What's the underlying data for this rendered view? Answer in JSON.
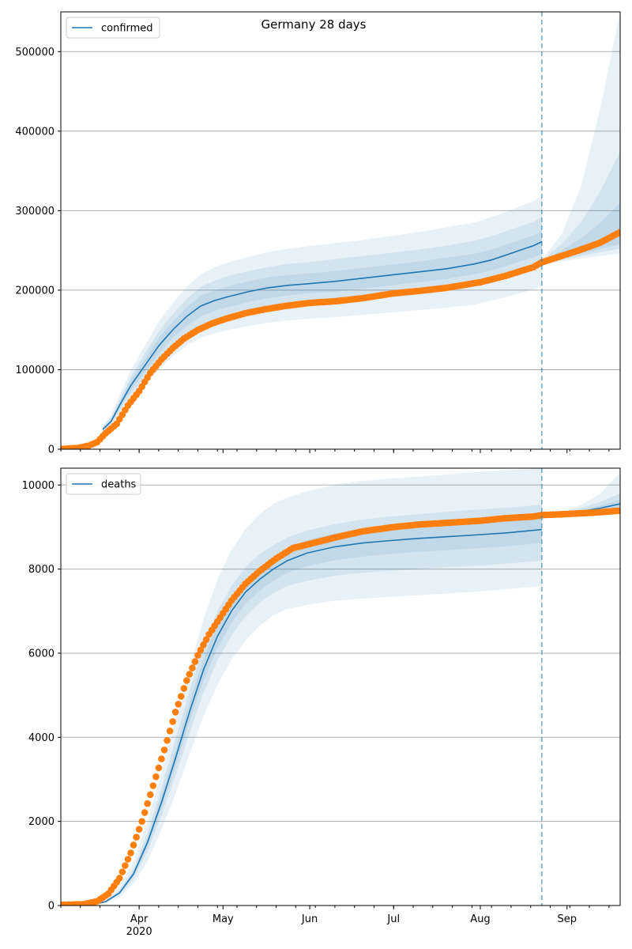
{
  "figure": {
    "title": "Germany 28 days",
    "colors": {
      "model_line": "#1f77b4",
      "band": "#1f77b4",
      "observed": "#ff7f0e",
      "grid": "#b0b0b0",
      "forecast_marker": "#1f77b4"
    }
  },
  "chart_data": [
    {
      "type": "line",
      "legend": "confirmed",
      "legend_position": "top-left",
      "grid": "y",
      "ylim": [
        0,
        550000
      ],
      "yticks": [
        0,
        100000,
        200000,
        300000,
        400000,
        500000
      ],
      "ytick_labels": [
        "0",
        "100000",
        "200000",
        "300000",
        "400000",
        "500000"
      ],
      "x_range": [
        "2020-03-04",
        "2020-09-20"
      ],
      "xtick_dates": [
        "2020-04-01",
        "2020-05-01",
        "2020-06-01",
        "2020-07-01",
        "2020-08-01",
        "2020-09-01"
      ],
      "xtick_labels": [
        "Apr",
        "May",
        "Jun",
        "Jul",
        "Aug",
        "Sep"
      ],
      "xtick_year_label": "2020",
      "forecast_start": "2020-08-23",
      "model": {
        "name": "confirmed",
        "dates": [
          "2020-03-19",
          "2020-03-22",
          "2020-03-25",
          "2020-03-29",
          "2020-04-03",
          "2020-04-08",
          "2020-04-13",
          "2020-04-18",
          "2020-04-23",
          "2020-04-28",
          "2020-05-03",
          "2020-05-10",
          "2020-05-17",
          "2020-05-24",
          "2020-05-31",
          "2020-06-10",
          "2020-06-20",
          "2020-06-30",
          "2020-07-10",
          "2020-07-20",
          "2020-07-30",
          "2020-08-05",
          "2020-08-10",
          "2020-08-15",
          "2020-08-20",
          "2020-08-23"
        ],
        "values": [
          25000,
          35000,
          55000,
          80000,
          105000,
          130000,
          150000,
          167000,
          180000,
          187000,
          192000,
          198000,
          203000,
          206000,
          208000,
          211000,
          215000,
          219000,
          223000,
          227000,
          233000,
          238000,
          244000,
          250000,
          256000,
          261000
        ],
        "bands": [
          {
            "lower": [
              21000,
              29000,
              44000,
              63000,
              82000,
              100000,
              117000,
              130000,
              140000,
              146000,
              150000,
              155000,
              159000,
              162000,
              164000,
              166000,
              169000,
              172000,
              175000,
              178000,
              182000,
              187000,
              191000,
              196000,
              201000,
              205000
            ],
            "upper": [
              29000,
              43000,
              68000,
              99000,
              130000,
              160000,
              184000,
              204000,
              220000,
              229000,
              235000,
              242000,
              248000,
              252000,
              255000,
              259000,
              263000,
              268000,
              273000,
              279000,
              285000,
              292000,
              298000,
              305000,
              312000,
              318000
            ]
          },
          {
            "lower": [
              22000,
              31000,
              48000,
              69000,
              90000,
              111000,
              130000,
              144000,
              156000,
              163000,
              168000,
              173000,
              178000,
              181000,
              184000,
              186000,
              190000,
              194000,
              198000,
              202000,
              208000,
              213000,
              218000,
              223000,
              228000,
              233000
            ],
            "upper": [
              28000,
              40000,
              62000,
              91000,
              120000,
              148000,
              170000,
              189000,
              204000,
              212000,
              218000,
              224000,
              229000,
              233000,
              235000,
              239000,
              243000,
              247000,
              251000,
              256000,
              262000,
              268000,
              274000,
              280000,
              286000,
              292000
            ]
          },
          {
            "lower": [
              23500,
              33000,
              51000,
              74000,
              97000,
              120000,
              140000,
              155000,
              167000,
              174000,
              179000,
              185000,
              190000,
              193000,
              196000,
              198000,
              202000,
              206000,
              210000,
              214000,
              220000,
              225000,
              230000,
              236000,
              241000,
              246000
            ],
            "upper": [
              26500,
              37000,
              59000,
              86000,
              113000,
              140000,
              160000,
              179000,
              193000,
              200000,
              205000,
              211000,
              216000,
              219000,
              221000,
              224000,
              228000,
              232000,
              236000,
              241000,
              246000,
              251000,
              257000,
              263000,
              269000,
              274000
            ]
          }
        ]
      },
      "forecast": {
        "dates": [
          "2020-08-23",
          "2020-08-30",
          "2020-09-06",
          "2020-09-13",
          "2020-09-20"
        ],
        "values": [
          235000,
          243000,
          252000,
          262000,
          273000
        ],
        "bands": [
          {
            "lower": [
              232000,
              236000,
              240000,
              243000,
              246000
            ],
            "upper": [
              238000,
              270000,
              330000,
              430000,
              550000
            ]
          },
          {
            "lower": [
              233000,
              238000,
              243000,
              248000,
              252000
            ],
            "upper": [
              237000,
              258000,
              285000,
              325000,
              375000
            ]
          },
          {
            "lower": [
              234000,
              240000,
              246000,
              252000,
              258000
            ],
            "upper": [
              236000,
              250000,
              265000,
              285000,
              310000
            ]
          }
        ]
      },
      "observed": {
        "name": "observed confirmed",
        "anchor_dates": [
          "2020-03-04",
          "2020-03-10",
          "2020-03-14",
          "2020-03-17",
          "2020-03-20",
          "2020-03-24",
          "2020-03-28",
          "2020-04-01",
          "2020-04-05",
          "2020-04-09",
          "2020-04-13",
          "2020-04-17",
          "2020-04-22",
          "2020-04-27",
          "2020-05-02",
          "2020-05-09",
          "2020-05-16",
          "2020-05-23",
          "2020-06-01",
          "2020-06-10",
          "2020-06-20",
          "2020-07-01",
          "2020-07-10",
          "2020-07-20",
          "2020-08-01",
          "2020-08-10",
          "2020-08-20",
          "2020-08-23",
          "2020-08-30",
          "2020-09-06",
          "2020-09-13",
          "2020-09-20"
        ],
        "anchor_values": [
          300,
          1500,
          4500,
          9000,
          20000,
          32000,
          55000,
          73000,
          96000,
          113000,
          127000,
          139000,
          150000,
          158000,
          164000,
          171000,
          176000,
          180000,
          184000,
          186000,
          190000,
          196000,
          199000,
          203000,
          210000,
          218000,
          229000,
          235000,
          243000,
          251000,
          260000,
          273000
        ]
      }
    },
    {
      "type": "line",
      "legend": "deaths",
      "legend_position": "top-left",
      "grid": "y",
      "ylim": [
        0,
        10400
      ],
      "yticks": [
        0,
        2000,
        4000,
        6000,
        8000,
        10000
      ],
      "ytick_labels": [
        "0",
        "2000",
        "4000",
        "6000",
        "8000",
        "10000"
      ],
      "x_range": [
        "2020-03-04",
        "2020-09-20"
      ],
      "xtick_dates": [
        "2020-04-01",
        "2020-05-01",
        "2020-06-01",
        "2020-07-01",
        "2020-08-01",
        "2020-09-01"
      ],
      "xtick_labels": [
        "Apr",
        "May",
        "Jun",
        "Jul",
        "Aug",
        "Sep"
      ],
      "xtick_year_label": "2020",
      "forecast_start": "2020-08-23",
      "model": {
        "name": "deaths",
        "dates": [
          "2020-03-04",
          "2020-03-15",
          "2020-03-20",
          "2020-03-25",
          "2020-03-30",
          "2020-04-04",
          "2020-04-09",
          "2020-04-14",
          "2020-04-19",
          "2020-04-24",
          "2020-04-29",
          "2020-05-04",
          "2020-05-09",
          "2020-05-14",
          "2020-05-19",
          "2020-05-24",
          "2020-05-31",
          "2020-06-10",
          "2020-06-20",
          "2020-06-30",
          "2020-07-10",
          "2020-07-20",
          "2020-07-30",
          "2020-08-10",
          "2020-08-23"
        ],
        "values": [
          0,
          20,
          90,
          300,
          750,
          1500,
          2450,
          3500,
          4600,
          5600,
          6400,
          7000,
          7450,
          7750,
          8000,
          8200,
          8380,
          8530,
          8620,
          8680,
          8730,
          8770,
          8810,
          8860,
          8940
        ],
        "bands": [
          {
            "lower": [
              0,
              10,
              60,
              200,
              520,
              1050,
              1800,
              2650,
              3600,
              4500,
              5250,
              5850,
              6300,
              6650,
              6900,
              7050,
              7150,
              7250,
              7300,
              7340,
              7380,
              7420,
              7460,
              7520,
              7600
            ],
            "upper": [
              0,
              30,
              140,
              450,
              1050,
              2000,
              3150,
              4400,
              5650,
              6800,
              7750,
              8450,
              8950,
              9300,
              9550,
              9700,
              9850,
              10000,
              10100,
              10150,
              10200,
              10250,
              10300,
              10350,
              10400
            ]
          },
          {
            "lower": [
              0,
              15,
              75,
              250,
              640,
              1280,
              2130,
              3100,
              4100,
              5050,
              5820,
              6420,
              6880,
              7200,
              7430,
              7600,
              7720,
              7840,
              7910,
              7960,
              8000,
              8040,
              8080,
              8130,
              8200
            ],
            "upper": [
              0,
              25,
              110,
              360,
              870,
              1730,
              2800,
              3950,
              5100,
              6150,
              7000,
              7600,
              8050,
              8350,
              8570,
              8750,
              8920,
              9070,
              9180,
              9250,
              9310,
              9360,
              9410,
              9460,
              9530
            ]
          },
          {
            "lower": [
              0,
              18,
              82,
              275,
              700,
              1390,
              2300,
              3320,
              4370,
              5340,
              6120,
              6720,
              7180,
              7480,
              7720,
              7910,
              8070,
              8210,
              8300,
              8360,
              8410,
              8450,
              8490,
              8540,
              8620
            ],
            "upper": [
              0,
              22,
              98,
              325,
              800,
              1610,
              2600,
              3680,
              4830,
              5860,
              6680,
              7280,
              7720,
              8020,
              8280,
              8490,
              8690,
              8850,
              8940,
              9000,
              9050,
              9090,
              9130,
              9180,
              9260
            ]
          }
        ]
      },
      "forecast": {
        "dates": [
          "2020-08-23",
          "2020-08-30",
          "2020-09-06",
          "2020-09-13",
          "2020-09-20"
        ],
        "values": [
          9285,
          9310,
          9370,
          9450,
          9550
        ],
        "bands": [
          {
            "lower": [
              9270,
              9285,
              9310,
              9340,
              9370
            ],
            "upper": [
              9300,
              9360,
              9520,
              9800,
              10300
            ]
          },
          {
            "lower": [
              9275,
              9290,
              9320,
              9350,
              9380
            ],
            "upper": [
              9295,
              9340,
              9450,
              9600,
              9800
            ]
          },
          {
            "lower": [
              9280,
              9295,
              9335,
              9380,
              9430
            ],
            "upper": [
              9290,
              9325,
              9405,
              9510,
              9650
            ]
          }
        ]
      },
      "observed": {
        "name": "observed deaths",
        "anchor_dates": [
          "2020-03-04",
          "2020-03-12",
          "2020-03-17",
          "2020-03-21",
          "2020-03-25",
          "2020-03-29",
          "2020-04-02",
          "2020-04-06",
          "2020-04-10",
          "2020-04-14",
          "2020-04-18",
          "2020-04-22",
          "2020-04-26",
          "2020-04-30",
          "2020-05-04",
          "2020-05-09",
          "2020-05-14",
          "2020-05-20",
          "2020-05-26",
          "2020-06-01",
          "2020-06-10",
          "2020-06-20",
          "2020-07-01",
          "2020-07-10",
          "2020-07-20",
          "2020-08-01",
          "2020-08-10",
          "2020-08-20",
          "2020-08-23",
          "2020-09-01",
          "2020-09-10",
          "2020-09-20"
        ],
        "anchor_values": [
          16,
          30,
          100,
          280,
          650,
          1250,
          2000,
          2850,
          3700,
          4600,
          5350,
          5950,
          6450,
          6850,
          7250,
          7650,
          7950,
          8250,
          8500,
          8600,
          8750,
          8900,
          9000,
          9060,
          9100,
          9150,
          9210,
          9250,
          9285,
          9310,
          9340,
          9390
        ]
      }
    }
  ]
}
